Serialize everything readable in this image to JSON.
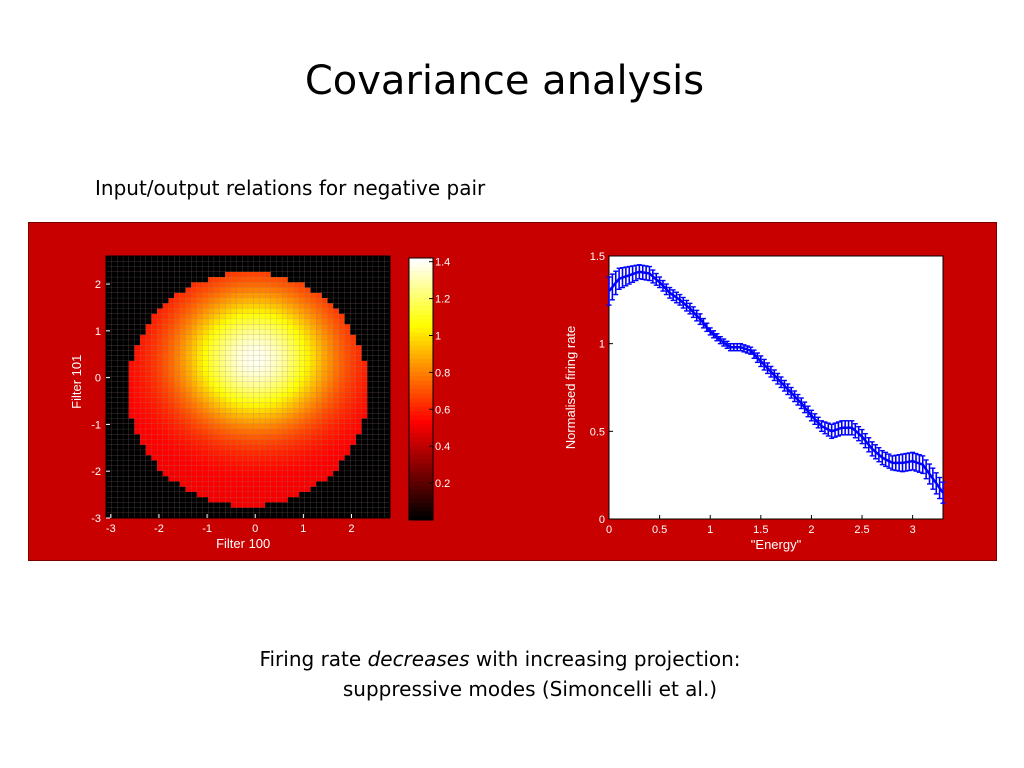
{
  "slide": {
    "title": "Covariance analysis",
    "subtitle": "Input/output relations for negative pair",
    "caption": {
      "line1_pre": "Firing rate ",
      "line1_em": "decreases",
      "line1_post": " with increasing projection:",
      "line2": "suppressive modes (Simoncelli et al.)"
    }
  },
  "chart_data": [
    {
      "type": "heatmap",
      "xlabel": "Filter 100",
      "ylabel": "Filter 101",
      "xlim": [
        -3.1,
        2.8
      ],
      "ylim": [
        -3,
        2.6
      ],
      "xticks": [
        "-3",
        "-2",
        "-1",
        "0",
        "1",
        "2"
      ],
      "yticks": [
        "2",
        "1",
        "0",
        "-1",
        "-2",
        "-3"
      ],
      "colorbar": {
        "range": [
          0,
          1.42
        ],
        "ticks": [
          "1.4",
          "1.2",
          "1",
          "0.8",
          "0.6",
          "0.4",
          "0.2"
        ],
        "colormap": "hot"
      },
      "peak": {
        "x": 0,
        "y": 0.4,
        "value": 1.4
      },
      "support_radius": 2.5,
      "colors": {
        "background": "#c80000",
        "no_data": "#000000",
        "grid": "#9a9a9a"
      }
    },
    {
      "type": "line",
      "xlabel": "\"Energy\"",
      "ylabel": "Normalised firing rate",
      "xlim": [
        0,
        3.3
      ],
      "ylim": [
        0,
        1.5
      ],
      "xticks": [
        "0",
        "0.5",
        "1",
        "1.5",
        "2",
        "2.5",
        "3"
      ],
      "yticks": [
        "1.5",
        "1",
        "0.5",
        "0"
      ],
      "series": [
        {
          "color": "#0000ff",
          "error_bars": true,
          "x": [
            0.0,
            0.1,
            0.2,
            0.3,
            0.4,
            0.5,
            0.6,
            0.7,
            0.8,
            0.9,
            1.0,
            1.1,
            1.2,
            1.3,
            1.4,
            1.5,
            1.6,
            1.7,
            1.8,
            1.9,
            2.0,
            2.1,
            2.2,
            2.3,
            2.4,
            2.5,
            2.6,
            2.7,
            2.8,
            2.9,
            3.0,
            3.1,
            3.2,
            3.3
          ],
          "y": [
            1.3,
            1.37,
            1.39,
            1.41,
            1.4,
            1.35,
            1.29,
            1.25,
            1.2,
            1.14,
            1.07,
            1.02,
            0.98,
            0.98,
            0.96,
            0.9,
            0.84,
            0.78,
            0.72,
            0.66,
            0.59,
            0.53,
            0.5,
            0.52,
            0.52,
            0.47,
            0.4,
            0.35,
            0.32,
            0.32,
            0.33,
            0.31,
            0.23,
            0.15
          ],
          "err": [
            0.08,
            0.06,
            0.05,
            0.04,
            0.04,
            0.03,
            0.03,
            0.03,
            0.03,
            0.03,
            0.02,
            0.02,
            0.02,
            0.02,
            0.02,
            0.03,
            0.03,
            0.03,
            0.03,
            0.03,
            0.03,
            0.03,
            0.04,
            0.04,
            0.04,
            0.04,
            0.04,
            0.04,
            0.04,
            0.05,
            0.05,
            0.05,
            0.06,
            0.06
          ]
        }
      ]
    }
  ]
}
